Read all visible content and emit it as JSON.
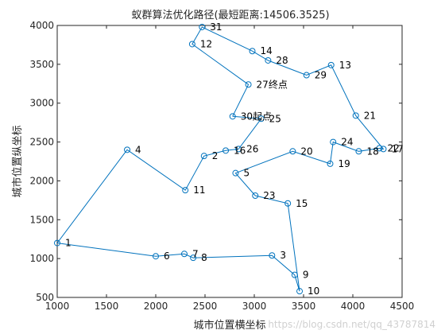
{
  "chart_data": {
    "type": "line",
    "title": "蚁群算法优化路径(最短距离:14506.3525)",
    "xlabel": "城市位置横坐标",
    "ylabel": "城市位置纵坐标",
    "xlim": [
      1000,
      4500
    ],
    "ylim": [
      500,
      4000
    ],
    "xticks": [
      "1000",
      "1500",
      "2000",
      "2500",
      "3000",
      "3500",
      "4000",
      "4500"
    ],
    "yticks": [
      "500",
      "1000",
      "1500",
      "2000",
      "2500",
      "3000",
      "3500",
      "4000"
    ],
    "color": "#0072BD",
    "marker": "circle",
    "grid": false,
    "cities": [
      {
        "label": "1",
        "x": 1000,
        "y": 1200
      },
      {
        "label": "2",
        "x": 2490,
        "y": 2320
      },
      {
        "label": "3",
        "x": 3180,
        "y": 1040
      },
      {
        "label": "4",
        "x": 1710,
        "y": 2400
      },
      {
        "label": "5",
        "x": 2810,
        "y": 2100
      },
      {
        "label": "6",
        "x": 2000,
        "y": 1030
      },
      {
        "label": "7",
        "x": 2290,
        "y": 1060
      },
      {
        "label": "8",
        "x": 2380,
        "y": 1010
      },
      {
        "label": "9",
        "x": 3410,
        "y": 790
      },
      {
        "label": "10",
        "x": 3460,
        "y": 580
      },
      {
        "label": "11",
        "x": 2300,
        "y": 1880
      },
      {
        "label": "12",
        "x": 2370,
        "y": 3760
      },
      {
        "label": "13",
        "x": 3780,
        "y": 3490
      },
      {
        "label": "14",
        "x": 2980,
        "y": 3670
      },
      {
        "label": "15",
        "x": 3340,
        "y": 1710
      },
      {
        "label": "16",
        "x": 2710,
        "y": 2390
      },
      {
        "label": "17",
        "x": 4310,
        "y": 2410
      },
      {
        "label": "18",
        "x": 4060,
        "y": 2380
      },
      {
        "label": "19",
        "x": 3770,
        "y": 2220
      },
      {
        "label": "20",
        "x": 3390,
        "y": 2380
      },
      {
        "label": "21",
        "x": 4030,
        "y": 2840
      },
      {
        "label": "22",
        "x": 4270,
        "y": 2420
      },
      {
        "label": "23",
        "x": 3010,
        "y": 1810
      },
      {
        "label": "24",
        "x": 3800,
        "y": 2500
      },
      {
        "label": "25",
        "x": 3070,
        "y": 2800
      },
      {
        "label": "26",
        "x": 2840,
        "y": 2410
      },
      {
        "label": "27终点",
        "x": 2940,
        "y": 3240
      },
      {
        "label": "28",
        "x": 3140,
        "y": 3550
      },
      {
        "label": "29",
        "x": 3530,
        "y": 3360
      },
      {
        "label": "30起点",
        "x": 2780,
        "y": 2830
      },
      {
        "label": "31",
        "x": 2470,
        "y": 3980
      }
    ],
    "route": [
      30,
      25,
      26,
      16,
      2,
      11,
      4,
      1,
      6,
      7,
      8,
      3,
      9,
      10,
      15,
      23,
      5,
      20,
      19,
      24,
      18,
      22,
      17,
      21,
      13,
      29,
      28,
      14,
      31,
      12,
      27
    ]
  },
  "watermark": "https://blog.csdn.net/qq_43787814"
}
